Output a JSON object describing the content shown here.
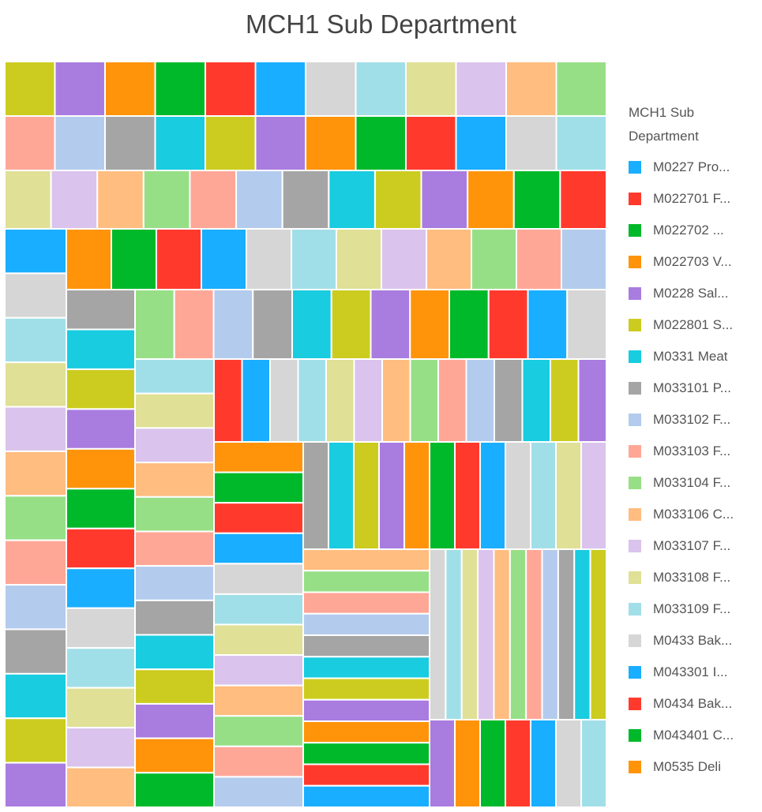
{
  "chart_data": {
    "type": "treemap",
    "title": "MCH1 Sub Department",
    "legend": {
      "title": "MCH1 Sub Department",
      "placement": "right",
      "entries": [
        {
          "label": "M0227 Pro...",
          "color": "#19aeff"
        },
        {
          "label": "M022701 F...",
          "color": "#ff3a2d"
        },
        {
          "label": "M022702 ...",
          "color": "#00b92a"
        },
        {
          "label": "M022703 V...",
          "color": "#ff940a"
        },
        {
          "label": "M0228 Sal...",
          "color": "#a97ce0"
        },
        {
          "label": "M022801 S...",
          "color": "#cccc20"
        },
        {
          "label": "M0331 Meat",
          "color": "#19cce0"
        },
        {
          "label": "M033101 P...",
          "color": "#a5a5a5"
        },
        {
          "label": "M033102 F...",
          "color": "#b3cbed"
        },
        {
          "label": "M033103 F...",
          "color": "#ffa797"
        },
        {
          "label": "M033104 F...",
          "color": "#97df86"
        },
        {
          "label": "M033106 C...",
          "color": "#ffbd80"
        },
        {
          "label": "M033107 F...",
          "color": "#dac3ec"
        },
        {
          "label": "M033108 F...",
          "color": "#e0e096"
        },
        {
          "label": "M033109 F...",
          "color": "#a1dfe8"
        },
        {
          "label": "M0433 Bak...",
          "color": "#d6d6d6"
        },
        {
          "label": "M043301 I...",
          "color": "#19aeff"
        },
        {
          "label": "M0434 Bak...",
          "color": "#ff3a2d"
        },
        {
          "label": "M043401 C...",
          "color": "#00b92a"
        },
        {
          "label": "M0535 Deli",
          "color": "#ff940a"
        }
      ]
    },
    "palette": [
      "#cccc20",
      "#a97ce0",
      "#ff940a",
      "#00b92a",
      "#ff3a2d",
      "#19aeff",
      "#d6d6d6",
      "#a1dfe8",
      "#e0e096",
      "#dac3ec",
      "#ffbd80",
      "#97df86",
      "#ffa797",
      "#b3cbed",
      "#a5a5a5",
      "#19cce0"
    ],
    "tiles_count": 187
  }
}
